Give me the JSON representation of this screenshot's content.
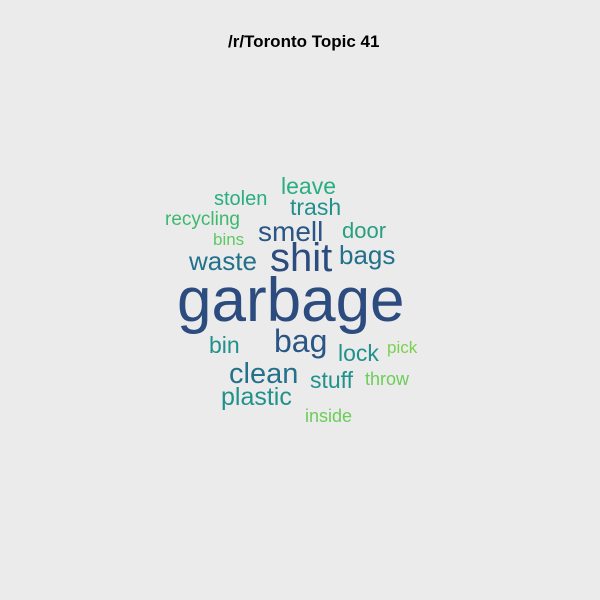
{
  "title": "/r/Toronto Topic 41",
  "words": [
    {
      "text": "garbage",
      "color": "#2c4b7e"
    },
    {
      "text": "shit",
      "color": "#2c4b7e"
    },
    {
      "text": "bag",
      "color": "#2a5686"
    },
    {
      "text": "smell",
      "color": "#2a5686"
    },
    {
      "text": "waste",
      "color": "#23718a"
    },
    {
      "text": "bags",
      "color": "#23718a"
    },
    {
      "text": "clean",
      "color": "#23718a"
    },
    {
      "text": "trash",
      "color": "#21918c"
    },
    {
      "text": "door",
      "color": "#26a07f"
    },
    {
      "text": "plastic",
      "color": "#21918c"
    },
    {
      "text": "stuff",
      "color": "#21918c"
    },
    {
      "text": "lock",
      "color": "#21918c"
    },
    {
      "text": "leave",
      "color": "#29af7f"
    },
    {
      "text": "bin",
      "color": "#21918c"
    },
    {
      "text": "stolen",
      "color": "#29af7f"
    },
    {
      "text": "recycling",
      "color": "#3db86f"
    },
    {
      "text": "bins",
      "color": "#5ec962"
    },
    {
      "text": "throw",
      "color": "#6ccd5a"
    },
    {
      "text": "pick",
      "color": "#7ad151"
    },
    {
      "text": "inside",
      "color": "#6ccd5a"
    }
  ]
}
